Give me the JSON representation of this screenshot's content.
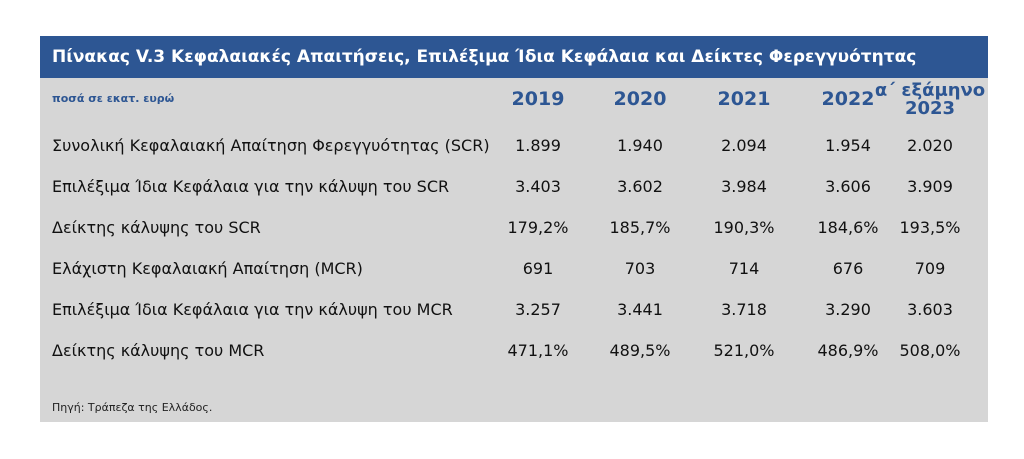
{
  "table": {
    "title": "Πίνακας V.3 Κεφαλαιακές Απαιτήσεις, Επιλέξιμα Ίδια Κεφάλαια και Δείκτες Φερεγγυότητας",
    "units": "ποσά σε εκατ. ευρώ",
    "columns": [
      "2019",
      "2020",
      "2021",
      "2022"
    ],
    "last_column": {
      "line1": "α΄ εξάμηνο",
      "line2": "2023"
    },
    "rows": [
      {
        "label": "Συνολική Κεφαλαιακή Απαίτηση Φερεγγυότητας (SCR)",
        "values": [
          "1.899",
          "1.940",
          "2.094",
          "1.954",
          "2.020"
        ]
      },
      {
        "label": "Επιλέξιμα Ίδια Κεφάλαια για την κάλυψη του SCR",
        "values": [
          "3.403",
          "3.602",
          "3.984",
          "3.606",
          "3.909"
        ]
      },
      {
        "label": "Δείκτης κάλυψης του SCR",
        "values": [
          "179,2%",
          "185,7%",
          "190,3%",
          "184,6%",
          "193,5%"
        ]
      },
      {
        "label": "Ελάχιστη Κεφαλαιακή Απαίτηση (MCR)",
        "values": [
          "691",
          "703",
          "714",
          "676",
          "709"
        ]
      },
      {
        "label": "Επιλέξιμα Ίδια Κεφάλαια για την κάλυψη του MCR",
        "values": [
          "3.257",
          "3.441",
          "3.718",
          "3.290",
          "3.603"
        ]
      },
      {
        "label": "Δείκτης κάλυψης του MCR",
        "values": [
          "471,1%",
          "489,5%",
          "521,0%",
          "486,9%",
          "508,0%"
        ]
      }
    ],
    "source": "Πηγή: Τράπεζα της Ελλάδος.",
    "colors": {
      "header_bg": "#2d5693",
      "body_bg": "#d6d6d6",
      "accent_text": "#2d5693"
    }
  }
}
